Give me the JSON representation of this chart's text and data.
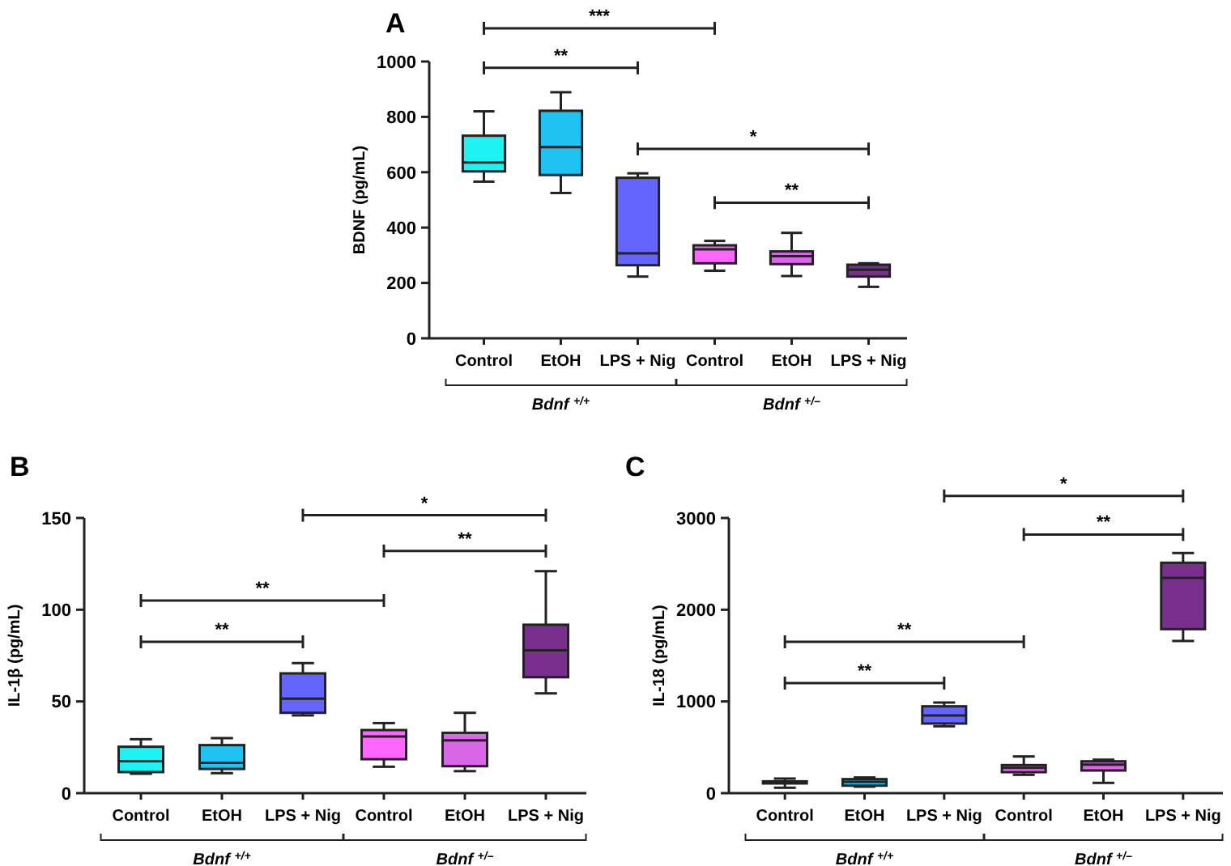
{
  "chart_data": [
    {
      "type": "box",
      "title": "A",
      "ylabel": "BDNF (pg/mL)",
      "categories": [
        "Control",
        "EtOH",
        "LPS + Nig",
        "Control",
        "EtOH",
        "LPS + Nig"
      ],
      "colors": [
        "#1ef2f2",
        "#1ec3f2",
        "#6464ff",
        "#ff66ff",
        "#d966e6",
        "#7a2e8e"
      ],
      "ylim": [
        0,
        1000
      ],
      "yticks": [
        0,
        200,
        400,
        600,
        800,
        1000
      ],
      "boxes": [
        {
          "low": 566,
          "q1": 603,
          "median": 635,
          "q3": 732,
          "high": 820
        },
        {
          "low": 525,
          "q1": 590,
          "median": 691,
          "q3": 822,
          "high": 889
        },
        {
          "low": 223,
          "q1": 264,
          "median": 307,
          "q3": 580,
          "high": 596
        },
        {
          "low": 244,
          "q1": 271,
          "median": 322,
          "q3": 336,
          "high": 352
        },
        {
          "low": 225,
          "q1": 268,
          "median": 297,
          "q3": 314,
          "high": 381
        },
        {
          "low": 186,
          "q1": 223,
          "median": 248,
          "q3": 266,
          "high": 271
        }
      ],
      "annotations": [
        "***",
        "**",
        "*",
        "**",
        "Bdnf $^{+/+}$",
        "Bdnf $^{+/–}$"
      ]
    },
    {
      "type": "box",
      "title": "B",
      "ylabel": "IL-1β (pg/mL)",
      "categories": [
        "Control",
        "EtOH",
        "LPS + Nig",
        "Control",
        "EtOH",
        "LPS + Nig"
      ],
      "colors": [
        "#1ef2f2",
        "#1ec3f2",
        "#6464ff",
        "#ff66ff",
        "#d966e6",
        "#7a2e8e"
      ],
      "ylim": [
        0,
        150
      ],
      "yticks": [
        0,
        50,
        100,
        150
      ],
      "boxes": [
        {
          "low": 10.6,
          "q1": 11.5,
          "median": 17.4,
          "q3": 25.3,
          "high": 29.4
        },
        {
          "low": 10.9,
          "q1": 13.2,
          "median": 16.5,
          "q3": 26.2,
          "high": 30
        },
        {
          "low": 42.4,
          "q1": 43.8,
          "median": 51.5,
          "q3": 65.3,
          "high": 70.9
        },
        {
          "low": 14.4,
          "q1": 18.5,
          "median": 30.9,
          "q3": 34.4,
          "high": 38.2
        },
        {
          "low": 12,
          "q1": 14.7,
          "median": 28.8,
          "q3": 32.9,
          "high": 43.8
        },
        {
          "low": 54.4,
          "q1": 63.2,
          "median": 77.9,
          "q3": 91.8,
          "high": 121
        }
      ],
      "annotations": [
        "*",
        "**",
        "**",
        "**",
        "Bdnf $^{+/+}$",
        "Bdnf $^{+/–}$"
      ]
    },
    {
      "type": "box",
      "title": "C",
      "ylabel": "IL-18 (pg/mL)",
      "categories": [
        "Control",
        "EtOH",
        "LPS + Nig",
        "Control",
        "EtOH",
        "LPS + Nig"
      ],
      "colors": [
        "#1ef2f2",
        "#1ec3f2",
        "#6464ff",
        "#ff66ff",
        "#d966e6",
        "#7a2e8e"
      ],
      "ylim": [
        0,
        3000
      ],
      "yticks": [
        0,
        1000,
        2000,
        3000
      ],
      "boxes": [
        {
          "low": 59,
          "q1": 106,
          "median": 118,
          "q3": 129,
          "high": 159
        },
        {
          "low": 71,
          "q1": 82,
          "median": 124,
          "q3": 153,
          "high": 171
        },
        {
          "low": 729,
          "q1": 759,
          "median": 847,
          "q3": 947,
          "high": 988
        },
        {
          "low": 200,
          "q1": 229,
          "median": 276,
          "q3": 306,
          "high": 400
        },
        {
          "low": 112,
          "q1": 247,
          "median": 312,
          "q3": 347,
          "high": 365
        },
        {
          "low": 1659,
          "q1": 1788,
          "median": 2347,
          "q3": 2512,
          "high": 2618
        }
      ],
      "annotations": [
        "*",
        "**",
        "**",
        "**",
        "Bdnf $^{+/+}$",
        "Bdnf $^{+/–}$"
      ]
    }
  ]
}
